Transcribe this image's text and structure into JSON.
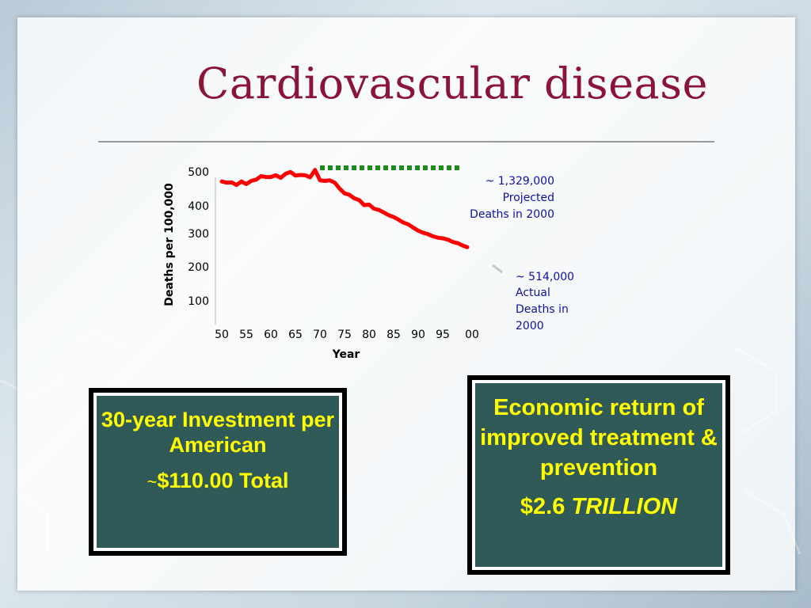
{
  "slide": {
    "title": "Cardiovascular disease"
  },
  "chart_data": {
    "type": "line",
    "ylabel": "Deaths per 100,000",
    "xlabel": "Year",
    "x_ticks": [
      "50",
      "55",
      "60",
      "65",
      "70",
      "75",
      "80",
      "85",
      "90",
      "95",
      "00"
    ],
    "y_ticks": [
      100,
      200,
      300,
      400,
      500
    ],
    "ylim": [
      0,
      500
    ],
    "series": [
      {
        "role": "actual",
        "color": "#ff0000",
        "x": [
          1950,
          1951,
          1952,
          1953,
          1954,
          1955,
          1956,
          1957,
          1958,
          1959,
          1960,
          1961,
          1962,
          1963,
          1964,
          1965,
          1966,
          1967,
          1968,
          1969,
          1970,
          1971,
          1972,
          1973,
          1974,
          1975,
          1976,
          1977,
          1978,
          1979,
          1980,
          1981,
          1982,
          1983,
          1984,
          1985,
          1986,
          1987,
          1988,
          1989,
          1990,
          1991,
          1992,
          1993,
          1994,
          1995,
          1996,
          1997,
          1998,
          1999,
          2000
        ],
        "values": [
          470,
          466,
          467,
          458,
          470,
          461,
          472,
          476,
          488,
          485,
          485,
          491,
          482,
          496,
          502,
          490,
          492,
          491,
          484,
          509,
          474,
          472,
          474,
          466,
          446,
          430,
          425,
          413,
          407,
          390,
          392,
          378,
          374,
          365,
          356,
          350,
          341,
          331,
          325,
          314,
          304,
          297,
          292,
          285,
          280,
          278,
          274,
          266,
          262,
          254,
          248
        ]
      },
      {
        "role": "projected",
        "color": "#1a8a1a",
        "x": [
          1970,
          2000
        ],
        "values": [
          530,
          530
        ]
      }
    ],
    "annotations": {
      "projected": [
        "~ 1,329,000",
        "Projected",
        "Deaths in 2000"
      ],
      "actual": [
        "~ 514,000",
        "Actual",
        "Deaths in",
        "2000"
      ]
    },
    "annotation_color": "#1010a0"
  },
  "boxes": {
    "investment": {
      "line1": "30-year Investment per American",
      "tilde": "~",
      "amount": "$110.00 Total"
    },
    "economic": {
      "line1": "Economic return of improved treatment & prevention",
      "amount_plain": "$2.6 ",
      "amount_italic": "TRILLION"
    },
    "bg_color": "#2f5a57",
    "text_color": "#ffff00"
  }
}
